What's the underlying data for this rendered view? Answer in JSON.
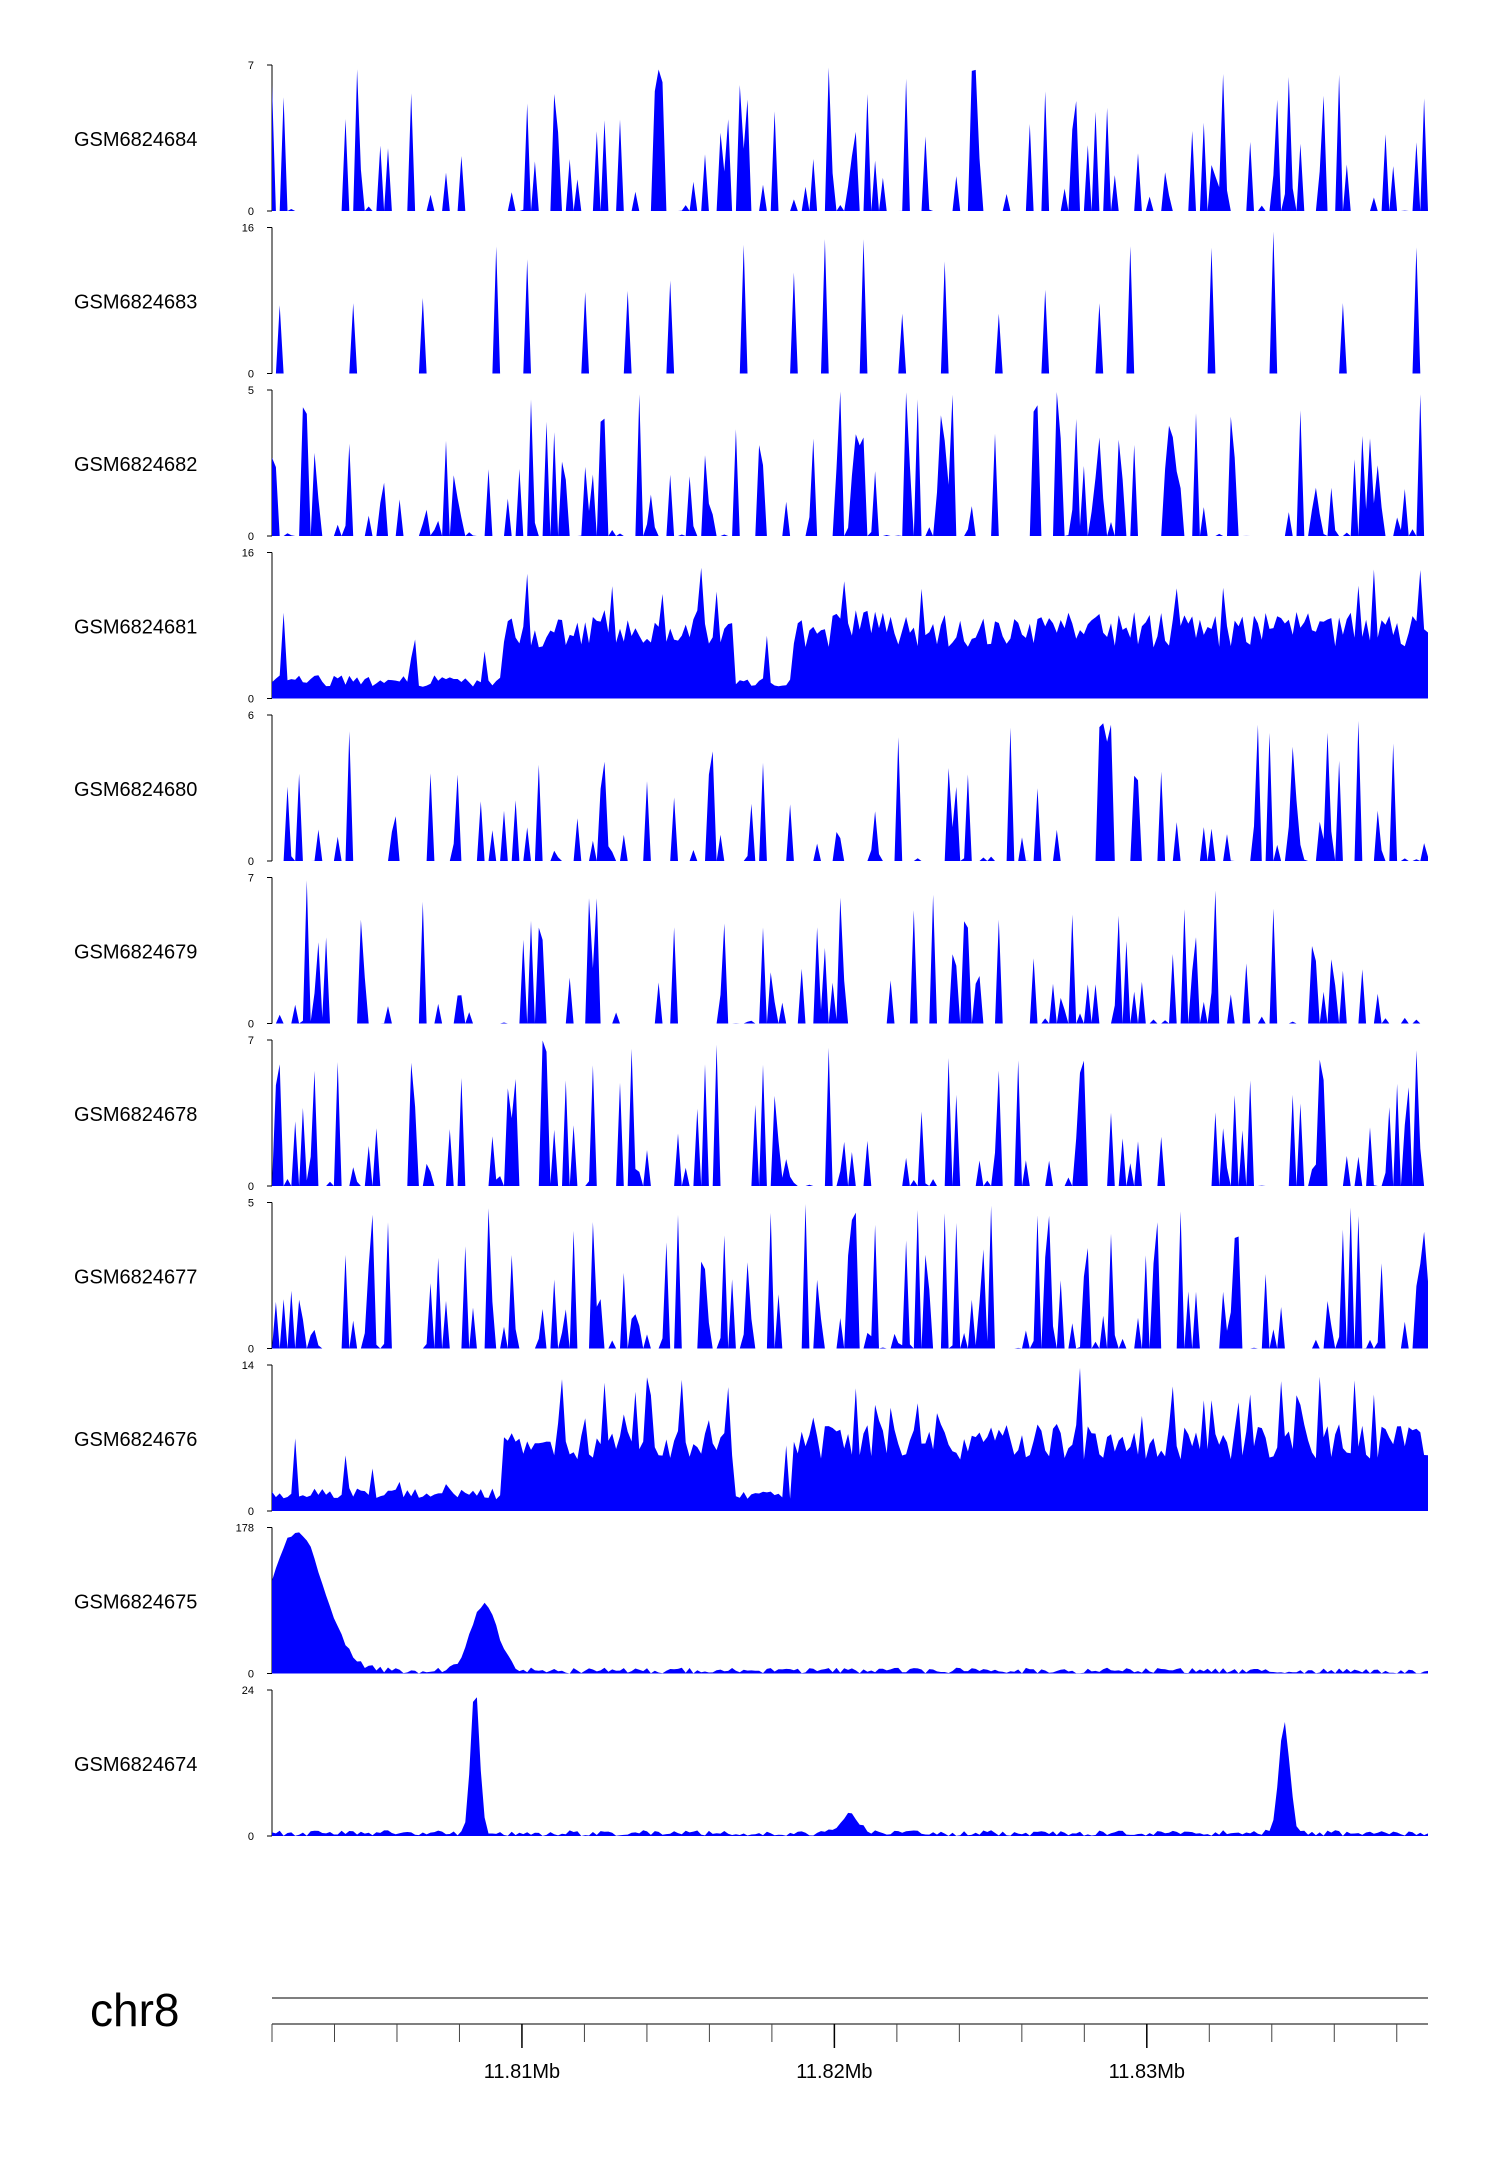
{
  "chart_data": {
    "type": "area",
    "title": "",
    "chromosome": "chr8",
    "x_range_mb": [
      11.802,
      11.839
    ],
    "x_ticks_mb": [
      11.81,
      11.82,
      11.83
    ],
    "x_tick_labels": [
      "11.81Mb",
      "11.82Mb",
      "11.83Mb"
    ],
    "x_minor_step_mb": 0.002,
    "fill_color": "#0000ff",
    "grid": false,
    "tracks": [
      {
        "name": "GSM6824684",
        "ymax": 7,
        "ymin_label": "0",
        "ymax_label": "7",
        "pattern": "spiky",
        "peaks": []
      },
      {
        "name": "GSM6824683",
        "ymax": 16,
        "ymin_label": "0",
        "ymax_label": "16",
        "pattern": "sparse",
        "peaks": []
      },
      {
        "name": "GSM6824682",
        "ymax": 5,
        "ymin_label": "0",
        "ymax_label": "5",
        "pattern": "dense",
        "peaks": []
      },
      {
        "name": "GSM6824681",
        "ymax": 16,
        "ymin_label": "0",
        "ymax_label": "16",
        "pattern": "block",
        "peaks": []
      },
      {
        "name": "GSM6824680",
        "ymax": 6,
        "ymin_label": "0",
        "ymax_label": "6",
        "pattern": "spiky",
        "peaks": []
      },
      {
        "name": "GSM6824679",
        "ymax": 7,
        "ymin_label": "0",
        "ymax_label": "7",
        "pattern": "spiky",
        "peaks": []
      },
      {
        "name": "GSM6824678",
        "ymax": 7,
        "ymin_label": "0",
        "ymax_label": "7",
        "pattern": "spiky",
        "peaks": []
      },
      {
        "name": "GSM6824677",
        "ymax": 5,
        "ymin_label": "0",
        "ymax_label": "5",
        "pattern": "dense",
        "peaks": []
      },
      {
        "name": "GSM6824676",
        "ymax": 14,
        "ymin_label": "0",
        "ymax_label": "14",
        "pattern": "block",
        "peaks": []
      },
      {
        "name": "GSM6824675",
        "ymax": 178,
        "ymin_label": "0",
        "ymax_label": "178",
        "pattern": "peaks",
        "peaks": [
          {
            "x_mb": 11.8028,
            "height": 170,
            "width_mb": 0.0012
          },
          {
            "x_mb": 11.8088,
            "height": 80,
            "width_mb": 0.0006
          }
        ]
      },
      {
        "name": "GSM6824674",
        "ymax": 24,
        "ymin_label": "0",
        "ymax_label": "24",
        "pattern": "peaks",
        "peaks": [
          {
            "x_mb": 11.8085,
            "height": 24,
            "width_mb": 0.0002
          },
          {
            "x_mb": 11.8344,
            "height": 18,
            "width_mb": 0.00025
          },
          {
            "x_mb": 11.8205,
            "height": 3,
            "width_mb": 0.0004
          }
        ]
      }
    ]
  }
}
